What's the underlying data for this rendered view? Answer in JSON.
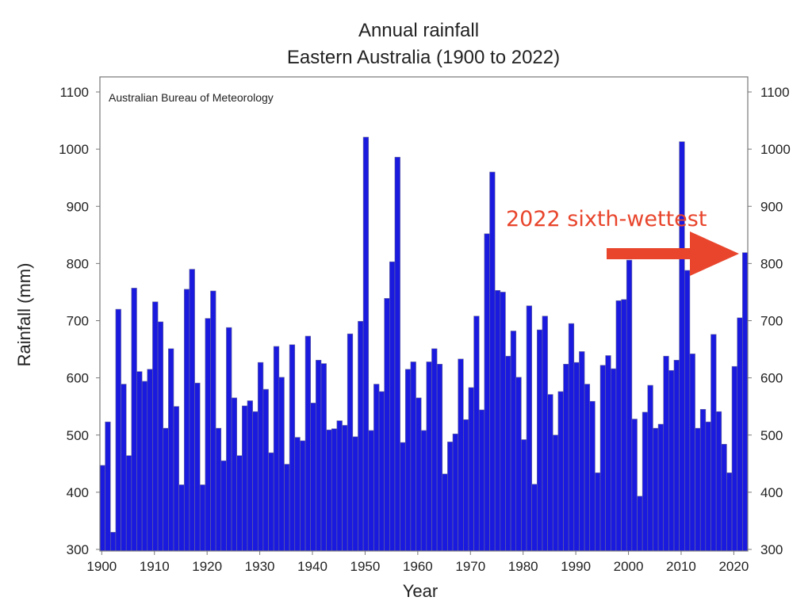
{
  "chart_data": {
    "type": "bar",
    "title": "Annual rainfall",
    "subtitle": "Eastern Australia (1900 to 2022)",
    "source_label": "Australian Bureau of Meteorology",
    "xlabel": "Year",
    "ylabel": "Rainfall (mm)",
    "ylim": [
      300,
      1100
    ],
    "xlim": [
      1900,
      2022
    ],
    "yticks": [
      "300",
      "400",
      "500",
      "600",
      "700",
      "800",
      "900",
      "1000",
      "1100"
    ],
    "xticks": [
      "1900",
      "1910",
      "1920",
      "1930",
      "1940",
      "1950",
      "1960",
      "1970",
      "1980",
      "1990",
      "2000",
      "2010",
      "2020"
    ],
    "grid": false,
    "bar_color": "#1a1adf",
    "annotation": {
      "text": "2022 sixth-wettest",
      "color": "#e8452c",
      "points_to_year": 2022
    },
    "x": [
      1900,
      1901,
      1902,
      1903,
      1904,
      1905,
      1906,
      1907,
      1908,
      1909,
      1910,
      1911,
      1912,
      1913,
      1914,
      1915,
      1916,
      1917,
      1918,
      1919,
      1920,
      1921,
      1922,
      1923,
      1924,
      1925,
      1926,
      1927,
      1928,
      1929,
      1930,
      1931,
      1932,
      1933,
      1934,
      1935,
      1936,
      1937,
      1938,
      1939,
      1940,
      1941,
      1942,
      1943,
      1944,
      1945,
      1946,
      1947,
      1948,
      1949,
      1950,
      1951,
      1952,
      1953,
      1954,
      1955,
      1956,
      1957,
      1958,
      1959,
      1960,
      1961,
      1962,
      1963,
      1964,
      1965,
      1966,
      1967,
      1968,
      1969,
      1970,
      1971,
      1972,
      1973,
      1974,
      1975,
      1976,
      1977,
      1978,
      1979,
      1980,
      1981,
      1982,
      1983,
      1984,
      1985,
      1986,
      1987,
      1988,
      1989,
      1990,
      1991,
      1992,
      1993,
      1994,
      1995,
      1996,
      1997,
      1998,
      1999,
      2000,
      2001,
      2002,
      2003,
      2004,
      2005,
      2006,
      2007,
      2008,
      2009,
      2010,
      2011,
      2012,
      2013,
      2014,
      2015,
      2016,
      2017,
      2018,
      2019,
      2020,
      2021,
      2022
    ],
    "values": [
      447,
      523,
      330,
      720,
      589,
      464,
      757,
      611,
      594,
      615,
      733,
      698,
      512,
      651,
      550,
      413,
      755,
      790,
      591,
      413,
      704,
      752,
      512,
      455,
      688,
      565,
      464,
      551,
      560,
      541,
      627,
      580,
      469,
      655,
      601,
      449,
      658,
      496,
      490,
      673,
      556,
      631,
      625,
      509,
      511,
      525,
      517,
      677,
      497,
      699,
      1021,
      508,
      589,
      576,
      739,
      803,
      986,
      487,
      615,
      628,
      565,
      508,
      628,
      651,
      624,
      432,
      488,
      502,
      633,
      527,
      583,
      708,
      544,
      852,
      960,
      753,
      750,
      638,
      682,
      601,
      492,
      726,
      414,
      684,
      708,
      571,
      500,
      576,
      624,
      695,
      627,
      646,
      589,
      559,
      434,
      622,
      639,
      616,
      735,
      737,
      806,
      528,
      393,
      540,
      587,
      512,
      519,
      638,
      613,
      631,
      1013,
      788,
      642,
      512,
      545,
      523,
      676,
      541,
      484,
      434,
      620,
      705,
      819
    ]
  }
}
